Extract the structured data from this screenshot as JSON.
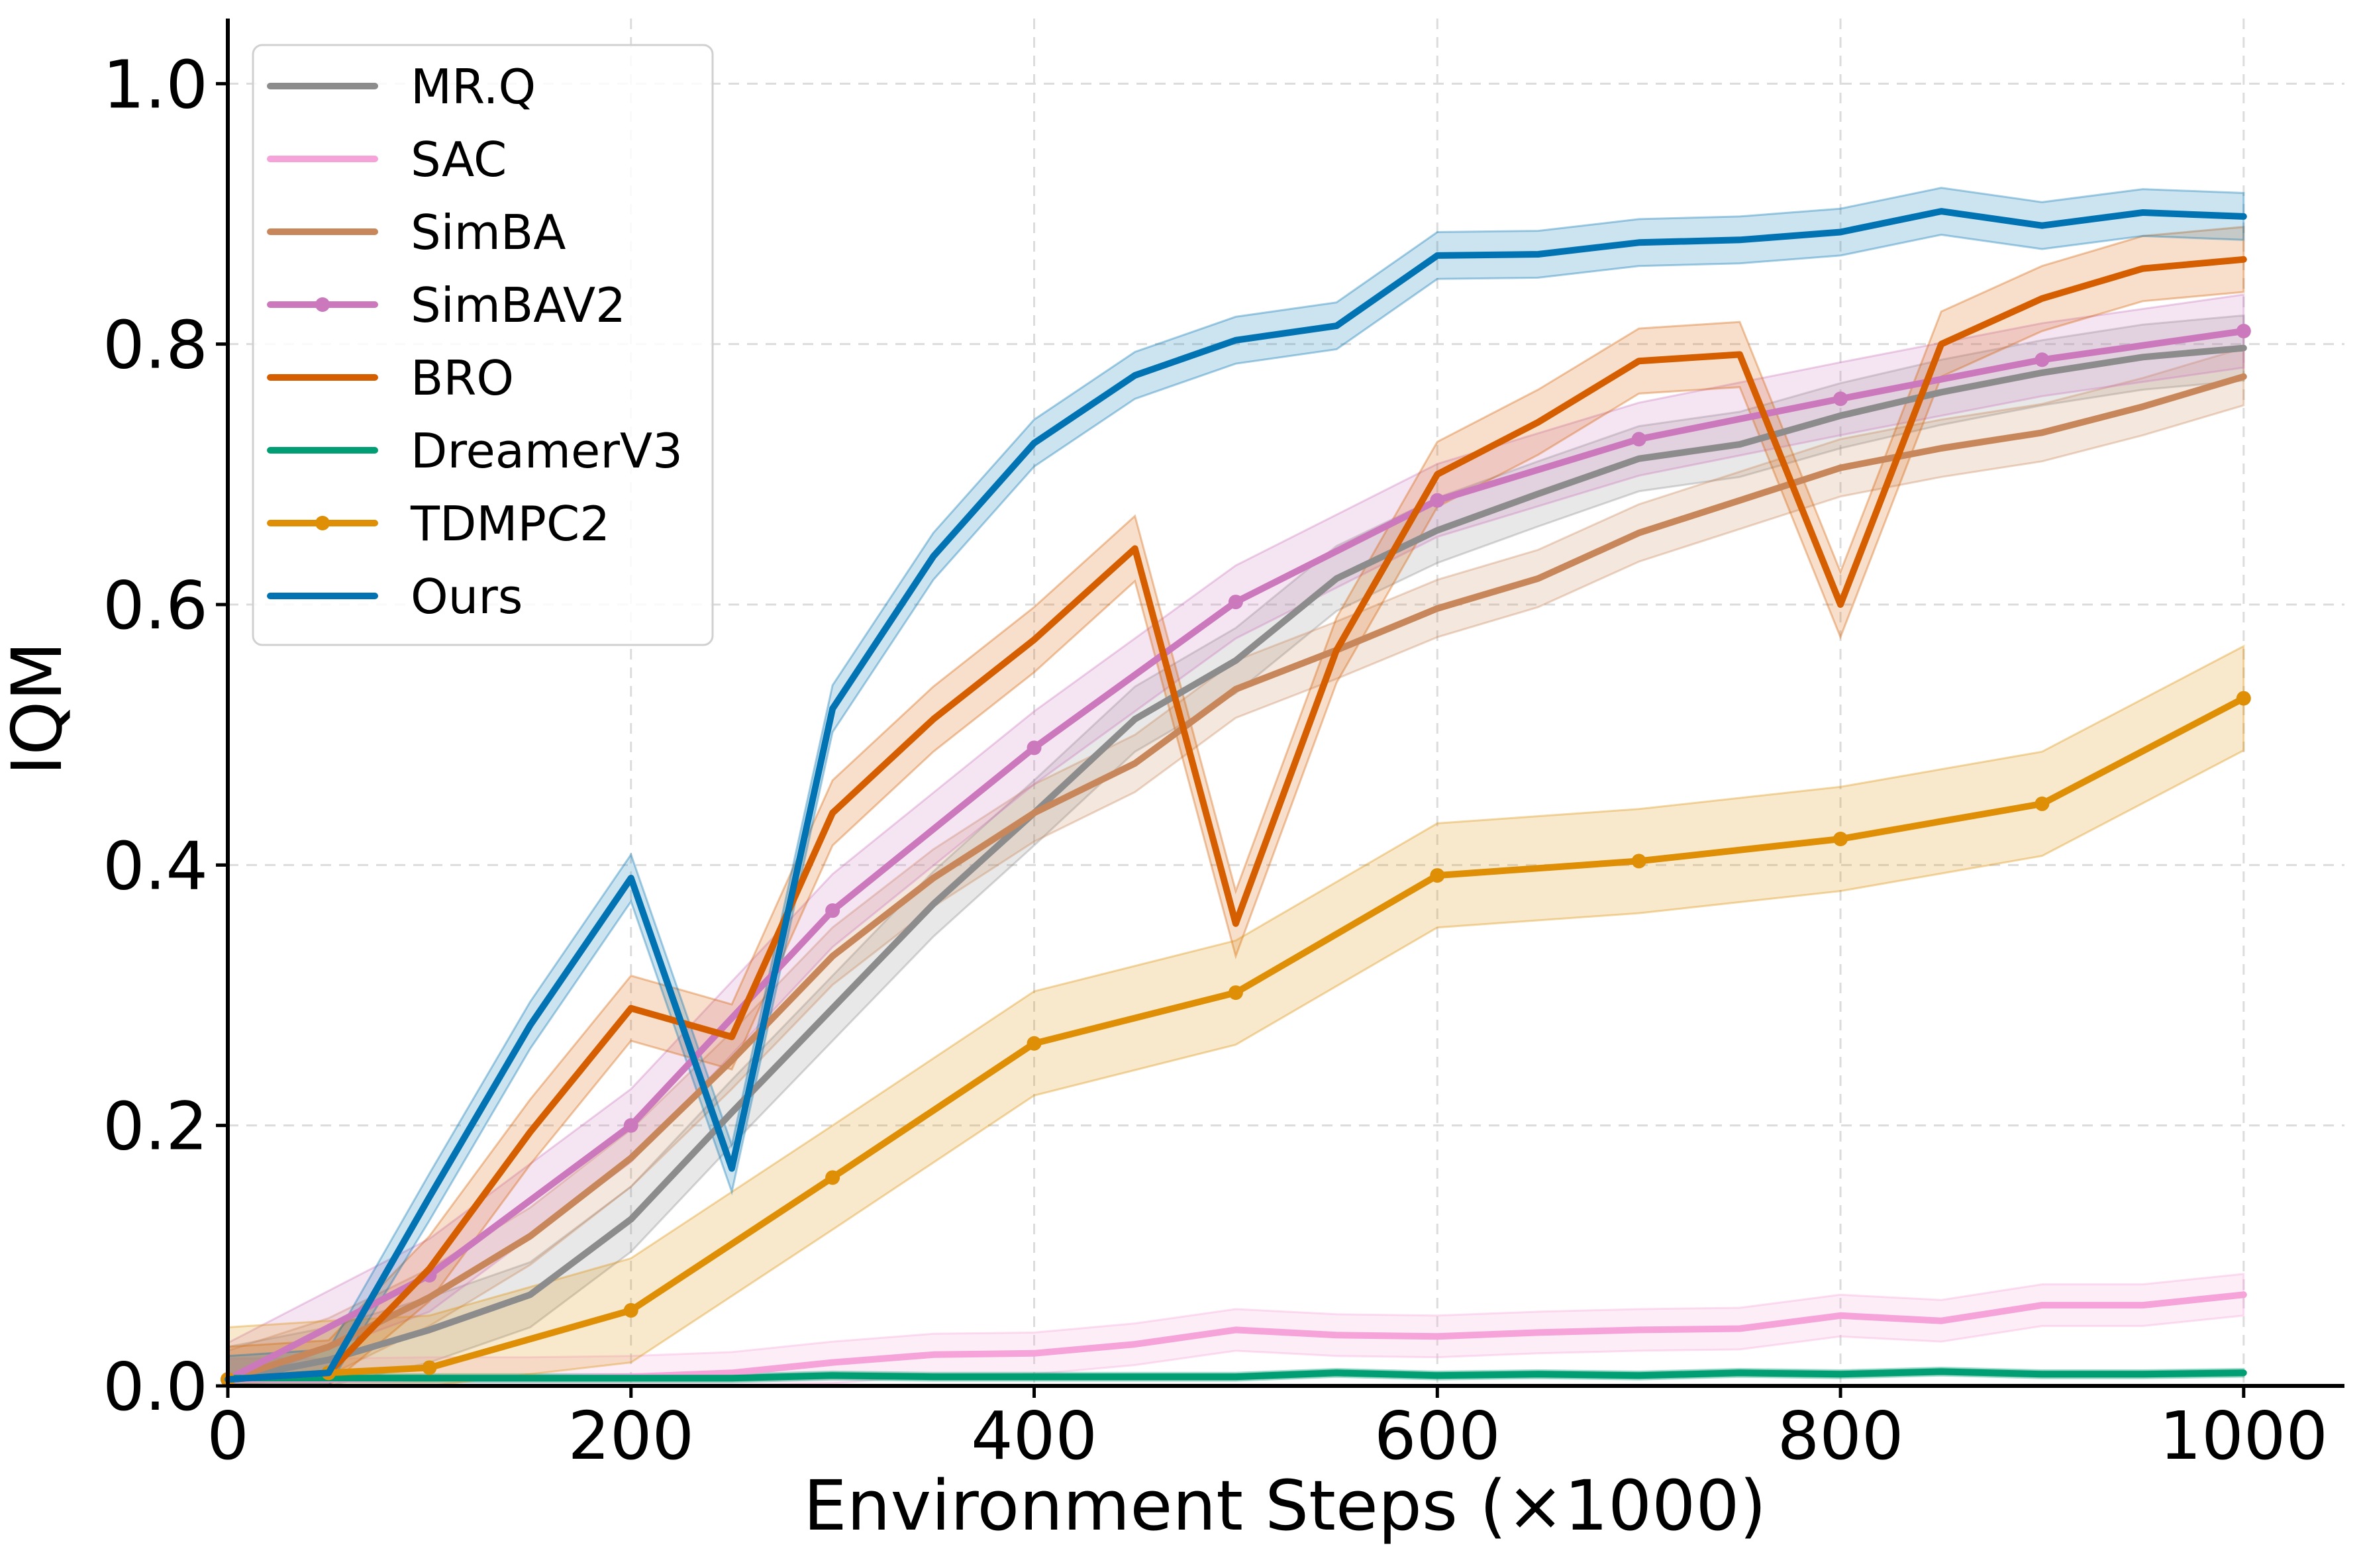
{
  "chart_data": {
    "type": "line",
    "title": "",
    "xlabel": "Environment Steps (×1000)",
    "ylabel": "IQM",
    "xlim": [
      0,
      1050
    ],
    "ylim": [
      0,
      1.05
    ],
    "xticks": [
      0,
      200,
      400,
      600,
      800,
      1000
    ],
    "xtick_labels": [
      "0",
      "200",
      "400",
      "600",
      "800",
      "1000"
    ],
    "yticks": [
      0.0,
      0.2,
      0.4,
      0.6,
      0.8,
      1.0
    ],
    "ytick_labels": [
      "0.0",
      "0.2",
      "0.4",
      "0.6",
      "0.8",
      "1.0"
    ],
    "grid": true,
    "legend_position": "top-left",
    "x": [
      0,
      50,
      100,
      150,
      200,
      250,
      300,
      350,
      400,
      450,
      500,
      550,
      600,
      650,
      700,
      750,
      800,
      850,
      900,
      950,
      1000
    ],
    "series": [
      {
        "name": "MR.Q",
        "color": "#8c8c8c",
        "marker": false,
        "x": [
          0,
          50,
          100,
          150,
          200,
          250,
          300,
          350,
          400,
          450,
          500,
          550,
          600,
          650,
          700,
          750,
          800,
          850,
          900,
          950,
          1000
        ],
        "values": [
          0.005,
          0.02,
          0.043,
          0.07,
          0.128,
          0.21,
          0.29,
          0.37,
          0.44,
          0.512,
          0.557,
          0.62,
          0.657,
          0.685,
          0.712,
          0.723,
          0.745,
          0.763,
          0.778,
          0.79,
          0.797
        ],
        "ci": 0.025
      },
      {
        "name": "SAC",
        "color": "#f5a3d9",
        "marker": false,
        "x": [
          0,
          50,
          100,
          150,
          200,
          250,
          300,
          350,
          400,
          450,
          500,
          550,
          600,
          650,
          700,
          750,
          800,
          850,
          900,
          950,
          1000
        ],
        "values": [
          0.005,
          0.005,
          0.006,
          0.006,
          0.007,
          0.01,
          0.018,
          0.024,
          0.025,
          0.032,
          0.043,
          0.039,
          0.038,
          0.041,
          0.043,
          0.044,
          0.054,
          0.05,
          0.062,
          0.062,
          0.07
        ],
        "ci": 0.016
      },
      {
        "name": "SimBA",
        "color": "#c8875a",
        "marker": false,
        "x": [
          0,
          50,
          100,
          150,
          200,
          250,
          300,
          350,
          400,
          450,
          500,
          550,
          600,
          650,
          700,
          750,
          800,
          850,
          900,
          950,
          1000
        ],
        "values": [
          0.005,
          0.03,
          0.068,
          0.115,
          0.175,
          0.25,
          0.33,
          0.39,
          0.44,
          0.478,
          0.535,
          0.565,
          0.597,
          0.62,
          0.655,
          0.68,
          0.705,
          0.72,
          0.732,
          0.752,
          0.775
        ],
        "ci": 0.022
      },
      {
        "name": "SimBAV2",
        "color": "#cc78bc",
        "marker": true,
        "x": [
          0,
          100,
          200,
          300,
          400,
          500,
          600,
          700,
          800,
          900,
          1000
        ],
        "values": [
          0.005,
          0.085,
          0.2,
          0.365,
          0.49,
          0.602,
          0.68,
          0.727,
          0.758,
          0.788,
          0.81
        ],
        "ci": 0.028
      },
      {
        "name": "BRO",
        "color": "#d55e00",
        "marker": false,
        "x": [
          0,
          50,
          100,
          150,
          200,
          250,
          300,
          350,
          400,
          450,
          500,
          550,
          600,
          650,
          700,
          750,
          800,
          850,
          900,
          950,
          1000
        ],
        "values": [
          0.005,
          0.01,
          0.09,
          0.195,
          0.29,
          0.268,
          0.44,
          0.512,
          0.573,
          0.643,
          0.355,
          0.565,
          0.7,
          0.74,
          0.787,
          0.792,
          0.6,
          0.8,
          0.835,
          0.858,
          0.865
        ],
        "ci": 0.025
      },
      {
        "name": "DreamerV3",
        "color": "#029e73",
        "marker": false,
        "x": [
          0,
          50,
          100,
          150,
          200,
          250,
          300,
          350,
          400,
          450,
          500,
          550,
          600,
          650,
          700,
          750,
          800,
          850,
          900,
          950,
          1000
        ],
        "values": [
          0.006,
          0.006,
          0.006,
          0.006,
          0.006,
          0.006,
          0.008,
          0.007,
          0.007,
          0.007,
          0.007,
          0.01,
          0.008,
          0.009,
          0.008,
          0.01,
          0.009,
          0.011,
          0.009,
          0.009,
          0.01
        ],
        "ci": 0.003
      },
      {
        "name": "TDMPC2",
        "color": "#de8f05",
        "marker": true,
        "x": [
          0,
          50,
          100,
          200,
          300,
          400,
          500,
          600,
          700,
          800,
          900,
          1000
        ],
        "values": [
          0.005,
          0.01,
          0.014,
          0.058,
          0.16,
          0.263,
          0.302,
          0.392,
          0.403,
          0.42,
          0.447,
          0.528
        ],
        "ci": 0.04
      },
      {
        "name": "Ours",
        "color": "#0173b2",
        "marker": false,
        "x": [
          0,
          50,
          100,
          150,
          200,
          250,
          300,
          350,
          400,
          450,
          500,
          550,
          600,
          650,
          700,
          750,
          800,
          850,
          900,
          950,
          1000
        ],
        "values": [
          0.005,
          0.01,
          0.145,
          0.277,
          0.39,
          0.167,
          0.52,
          0.637,
          0.724,
          0.776,
          0.803,
          0.814,
          0.868,
          0.869,
          0.878,
          0.88,
          0.886,
          0.902,
          0.891,
          0.901,
          0.898
        ],
        "ci": 0.018
      }
    ]
  }
}
